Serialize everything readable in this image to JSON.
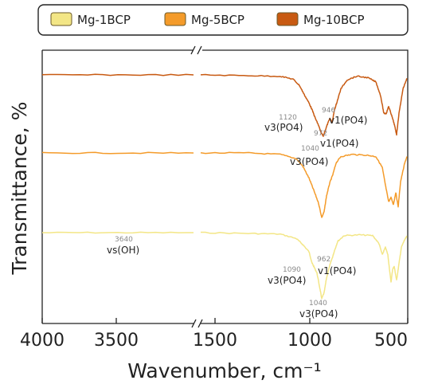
{
  "chart_data": {
    "type": "line",
    "xlabel": "Wavenumber, cm⁻¹",
    "ylabel": "Transmittance, %",
    "x_ticks": [
      "4000",
      "3500",
      "1500",
      "1000",
      "500"
    ],
    "x_reversed": true,
    "x_broken": true,
    "legend_position": "top",
    "grid": false,
    "series": [
      {
        "name": "Mg-1BCP",
        "color": "#F3E686",
        "points": [
          [
            4000,
            0.0
          ],
          [
            3000,
            0.0
          ],
          [
            2000,
            0.0
          ],
          [
            1800,
            0.0
          ],
          [
            1500,
            0.01
          ],
          [
            1300,
            0.02
          ],
          [
            1200,
            0.08
          ],
          [
            1160,
            0.16
          ],
          [
            1120,
            0.26
          ],
          [
            1100,
            0.42
          ],
          [
            1090,
            0.46
          ],
          [
            1070,
            0.55
          ],
          [
            1050,
            0.78
          ],
          [
            1040,
            0.9
          ],
          [
            1025,
            0.82
          ],
          [
            1010,
            0.62
          ],
          [
            990,
            0.45
          ],
          [
            970,
            0.32
          ],
          [
            962,
            0.26
          ],
          [
            940,
            0.12
          ],
          [
            900,
            0.04
          ],
          [
            800,
            0.03
          ],
          [
            720,
            0.04
          ],
          [
            680,
            0.15
          ],
          [
            660,
            0.3
          ],
          [
            640,
            0.2
          ],
          [
            625,
            0.3
          ],
          [
            605,
            0.68
          ],
          [
            595,
            0.5
          ],
          [
            585,
            0.46
          ],
          [
            570,
            0.65
          ],
          [
            560,
            0.5
          ],
          [
            540,
            0.2
          ],
          [
            520,
            0.1
          ],
          [
            505,
            0.05
          ]
        ]
      },
      {
        "name": "Mg-5BCP",
        "color": "#F49B2A",
        "points": [
          [
            4000,
            0.0
          ],
          [
            3000,
            0.0
          ],
          [
            2000,
            0.0
          ],
          [
            1800,
            0.0
          ],
          [
            1500,
            0.0
          ],
          [
            1300,
            0.02
          ],
          [
            1200,
            0.08
          ],
          [
            1160,
            0.18
          ],
          [
            1120,
            0.35
          ],
          [
            1090,
            0.52
          ],
          [
            1060,
            0.7
          ],
          [
            1040,
            0.9
          ],
          [
            1025,
            0.82
          ],
          [
            1010,
            0.6
          ],
          [
            990,
            0.42
          ],
          [
            970,
            0.3
          ],
          [
            950,
            0.14
          ],
          [
            920,
            0.05
          ],
          [
            850,
            0.02
          ],
          [
            760,
            0.03
          ],
          [
            700,
            0.05
          ],
          [
            660,
            0.2
          ],
          [
            640,
            0.45
          ],
          [
            620,
            0.68
          ],
          [
            605,
            0.62
          ],
          [
            590,
            0.72
          ],
          [
            575,
            0.55
          ],
          [
            560,
            0.75
          ],
          [
            545,
            0.4
          ],
          [
            520,
            0.15
          ],
          [
            505,
            0.05
          ]
        ]
      },
      {
        "name": "Mg-10BCP",
        "color": "#C85A12",
        "points": [
          [
            4000,
            0.0
          ],
          [
            3000,
            0.0
          ],
          [
            2000,
            0.0
          ],
          [
            1800,
            0.0
          ],
          [
            1500,
            0.01
          ],
          [
            1300,
            0.02
          ],
          [
            1220,
            0.06
          ],
          [
            1180,
            0.15
          ],
          [
            1150,
            0.28
          ],
          [
            1120,
            0.4
          ],
          [
            1100,
            0.5
          ],
          [
            1080,
            0.62
          ],
          [
            1060,
            0.72
          ],
          [
            1045,
            0.82
          ],
          [
            1030,
            0.87
          ],
          [
            1010,
            0.74
          ],
          [
            990,
            0.62
          ],
          [
            975,
            0.68
          ],
          [
            960,
            0.5
          ],
          [
            946,
            0.4
          ],
          [
            920,
            0.2
          ],
          [
            880,
            0.07
          ],
          [
            820,
            0.02
          ],
          [
            750,
            0.04
          ],
          [
            700,
            0.1
          ],
          [
            670,
            0.3
          ],
          [
            650,
            0.55
          ],
          [
            635,
            0.55
          ],
          [
            620,
            0.45
          ],
          [
            605,
            0.55
          ],
          [
            585,
            0.7
          ],
          [
            570,
            0.85
          ],
          [
            555,
            0.55
          ],
          [
            530,
            0.2
          ],
          [
            505,
            0.05
          ]
        ]
      }
    ],
    "annotations": {
      "top": [
        {
          "wn": "1120",
          "label": "v3(PO4)"
        },
        {
          "wn": "946",
          "label": "v1(PO4)"
        },
        {
          "wn": "972",
          "label": "v1(PO4)"
        },
        {
          "wn": "1040",
          "label": "v3(PO4)"
        }
      ],
      "bottom": [
        {
          "wn": "3640",
          "label": "vs(OH)"
        },
        {
          "wn": "1090",
          "label": "v3(PO4)"
        },
        {
          "wn": "962",
          "label": "v1(PO4)"
        },
        {
          "wn": "1040",
          "label": "v3(PO4)"
        }
      ]
    }
  }
}
